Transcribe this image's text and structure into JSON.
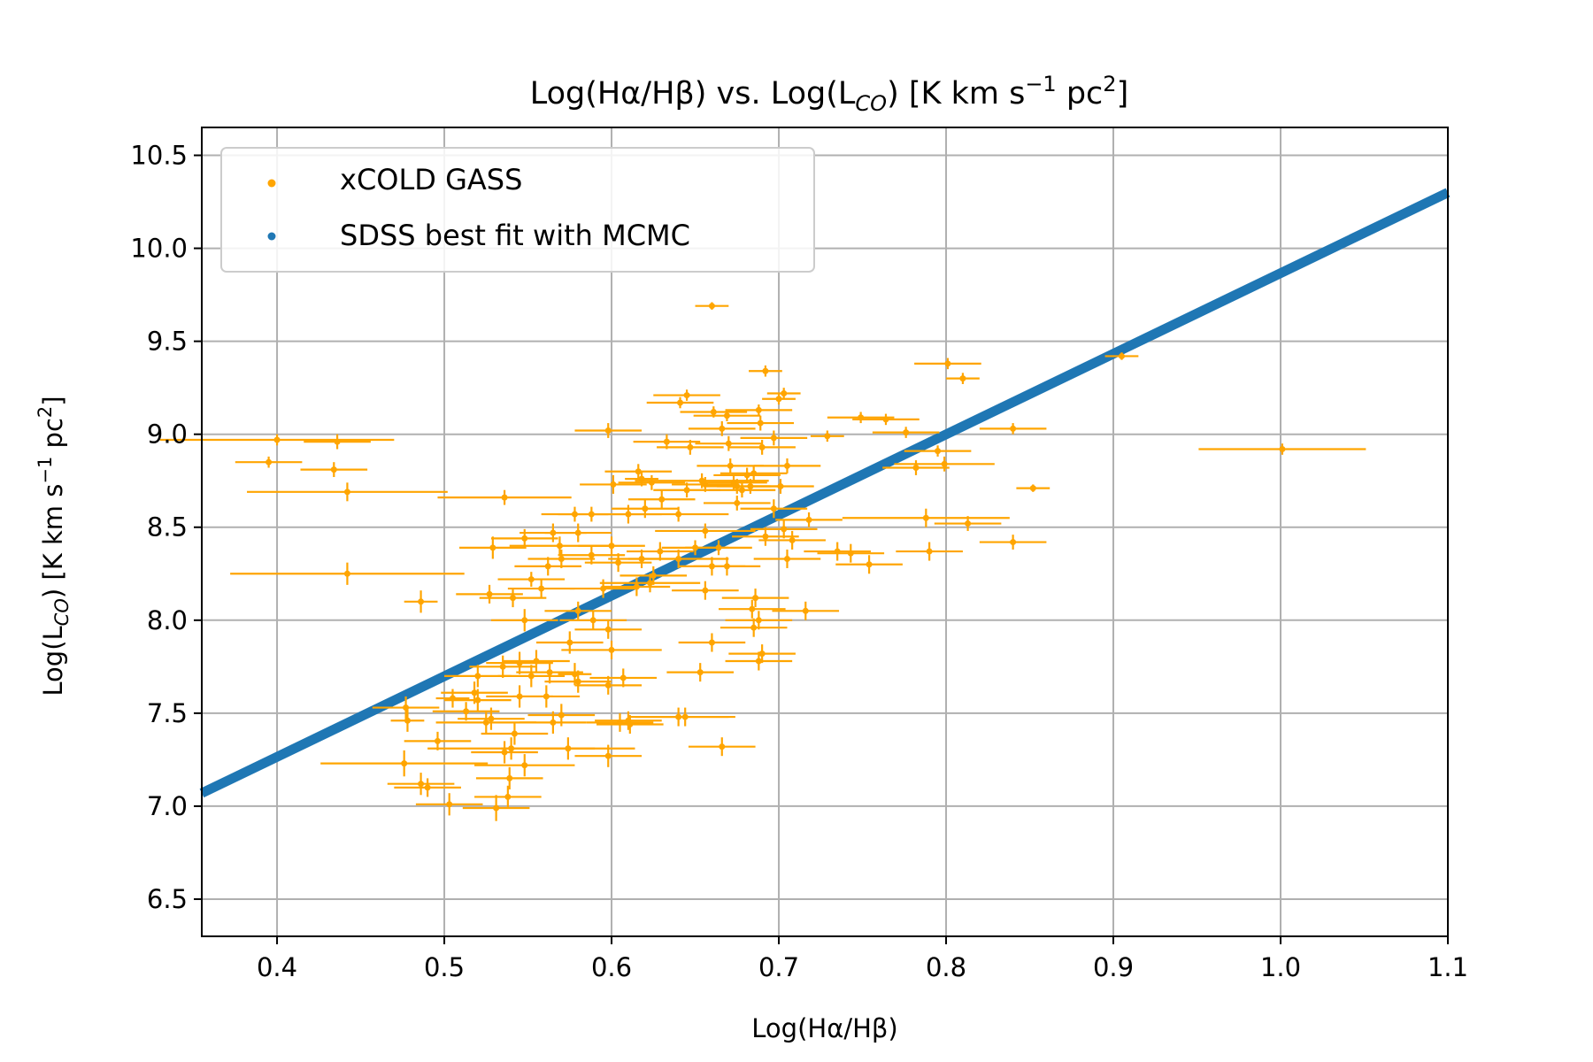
{
  "chart_data": {
    "type": "scatter",
    "title_parts": [
      "Log(Hα/Hβ) vs. Log(L",
      "CO",
      ") [K km s",
      "−1",
      " pc",
      "2",
      "]"
    ],
    "xlabel": "Log(Hα/Hβ)",
    "ylabel_parts": [
      "Log(L",
      "CO",
      ") [K km s",
      "−1",
      " pc",
      "2",
      "]"
    ],
    "xlim": [
      0.355,
      1.1
    ],
    "ylim": [
      6.3,
      10.65
    ],
    "xticks": [
      0.4,
      0.5,
      0.6,
      0.7,
      0.8,
      0.9,
      1.0,
      1.1
    ],
    "xtick_labels": [
      "0.4",
      "0.5",
      "0.6",
      "0.7",
      "0.8",
      "0.9",
      "1.0",
      "1.1"
    ],
    "yticks": [
      6.5,
      7.0,
      7.5,
      8.0,
      8.5,
      9.0,
      9.5,
      10.0,
      10.5
    ],
    "ytick_labels": [
      "6.5",
      "7.0",
      "7.5",
      "8.0",
      "8.5",
      "9.0",
      "9.5",
      "10.0",
      "10.5"
    ],
    "grid": true,
    "legend_position": "top-left",
    "colors": {
      "xcold": "#ffa500",
      "fit": "#1f77b4"
    },
    "series": [
      {
        "name": "xCOLD GASS",
        "kind": "errorbar",
        "points": [
          [
            0.4,
            8.97,
            0.07,
            0.03
          ],
          [
            0.395,
            8.85,
            0.02,
            0.03
          ],
          [
            0.436,
            8.96,
            0.02,
            0.04
          ],
          [
            0.434,
            8.81,
            0.02,
            0.04
          ],
          [
            0.442,
            8.69,
            0.06,
            0.05
          ],
          [
            0.442,
            8.25,
            0.07,
            0.06
          ],
          [
            0.486,
            8.1,
            0.01,
            0.06
          ],
          [
            0.477,
            7.53,
            0.02,
            0.06
          ],
          [
            0.478,
            7.46,
            0.01,
            0.06
          ],
          [
            0.476,
            7.23,
            0.05,
            0.07
          ],
          [
            0.486,
            7.12,
            0.02,
            0.06
          ],
          [
            0.49,
            7.1,
            0.02,
            0.05
          ],
          [
            0.496,
            7.35,
            0.02,
            0.05
          ],
          [
            0.503,
            7.01,
            0.02,
            0.06
          ],
          [
            0.52,
            7.57,
            0.02,
            0.06
          ],
          [
            0.505,
            7.58,
            0.01,
            0.05
          ],
          [
            0.513,
            7.51,
            0.02,
            0.05
          ],
          [
            0.518,
            7.61,
            0.02,
            0.06
          ],
          [
            0.528,
            7.47,
            0.02,
            0.06
          ],
          [
            0.52,
            7.7,
            0.02,
            0.06
          ],
          [
            0.54,
            7.31,
            0.05,
            0.06
          ],
          [
            0.531,
            6.99,
            0.02,
            0.07
          ],
          [
            0.525,
            7.45,
            0.03,
            0.06
          ],
          [
            0.535,
            7.75,
            0.02,
            0.06
          ],
          [
            0.545,
            7.59,
            0.02,
            0.06
          ],
          [
            0.542,
            7.39,
            0.02,
            0.06
          ],
          [
            0.548,
            7.22,
            0.03,
            0.06
          ],
          [
            0.539,
            7.15,
            0.02,
            0.06
          ],
          [
            0.538,
            7.05,
            0.02,
            0.06
          ],
          [
            0.536,
            7.29,
            0.02,
            0.06
          ],
          [
            0.529,
            8.39,
            0.02,
            0.06
          ],
          [
            0.527,
            8.14,
            0.02,
            0.05
          ],
          [
            0.536,
            8.66,
            0.04,
            0.04
          ],
          [
            0.541,
            8.12,
            0.02,
            0.05
          ],
          [
            0.552,
            8.22,
            0.02,
            0.04
          ],
          [
            0.545,
            7.77,
            0.02,
            0.06
          ],
          [
            0.552,
            7.7,
            0.02,
            0.06
          ],
          [
            0.555,
            7.78,
            0.02,
            0.06
          ],
          [
            0.561,
            7.59,
            0.02,
            0.06
          ],
          [
            0.565,
            7.45,
            0.02,
            0.06
          ],
          [
            0.57,
            7.49,
            0.02,
            0.06
          ],
          [
            0.574,
            7.31,
            0.04,
            0.06
          ],
          [
            0.578,
            7.71,
            0.01,
            0.06
          ],
          [
            0.58,
            7.67,
            0.02,
            0.06
          ],
          [
            0.563,
            7.72,
            0.02,
            0.06
          ],
          [
            0.548,
            8.0,
            0.02,
            0.06
          ],
          [
            0.558,
            8.17,
            0.02,
            0.05
          ],
          [
            0.575,
            7.88,
            0.02,
            0.06
          ],
          [
            0.58,
            8.05,
            0.02,
            0.05
          ],
          [
            0.58,
            8.47,
            0.02,
            0.05
          ],
          [
            0.578,
            8.57,
            0.02,
            0.04
          ],
          [
            0.588,
            8.57,
            0.02,
            0.04
          ],
          [
            0.589,
            8.0,
            0.02,
            0.05
          ],
          [
            0.598,
            7.95,
            0.02,
            0.05
          ],
          [
            0.6,
            7.84,
            0.03,
            0.05
          ],
          [
            0.598,
            7.65,
            0.02,
            0.05
          ],
          [
            0.605,
            7.45,
            0.02,
            0.05
          ],
          [
            0.61,
            7.46,
            0.02,
            0.05
          ],
          [
            0.598,
            7.27,
            0.02,
            0.06
          ],
          [
            0.611,
            7.44,
            0.02,
            0.05
          ],
          [
            0.607,
            7.69,
            0.02,
            0.05
          ],
          [
            0.615,
            8.18,
            0.02,
            0.05
          ],
          [
            0.618,
            8.33,
            0.02,
            0.05
          ],
          [
            0.623,
            8.2,
            0.03,
            0.05
          ],
          [
            0.629,
            8.37,
            0.02,
            0.05
          ],
          [
            0.625,
            8.24,
            0.02,
            0.05
          ],
          [
            0.601,
            8.73,
            0.02,
            0.05
          ],
          [
            0.598,
            9.02,
            0.02,
            0.04
          ],
          [
            0.616,
            8.8,
            0.02,
            0.04
          ],
          [
            0.618,
            8.76,
            0.01,
            0.04
          ],
          [
            0.624,
            8.74,
            0.02,
            0.04
          ],
          [
            0.63,
            8.65,
            0.02,
            0.05
          ],
          [
            0.633,
            8.96,
            0.02,
            0.04
          ],
          [
            0.64,
            8.57,
            0.03,
            0.04
          ],
          [
            0.645,
            8.7,
            0.02,
            0.04
          ],
          [
            0.641,
            9.17,
            0.02,
            0.03
          ],
          [
            0.645,
            9.21,
            0.02,
            0.03
          ],
          [
            0.647,
            8.93,
            0.02,
            0.04
          ],
          [
            0.654,
            8.75,
            0.04,
            0.04
          ],
          [
            0.656,
            8.73,
            0.02,
            0.04
          ],
          [
            0.66,
            9.69,
            0.01,
            0.02
          ],
          [
            0.661,
            9.12,
            0.02,
            0.03
          ],
          [
            0.666,
            9.03,
            0.02,
            0.04
          ],
          [
            0.669,
            9.1,
            0.02,
            0.03
          ],
          [
            0.67,
            8.95,
            0.02,
            0.04
          ],
          [
            0.671,
            8.83,
            0.02,
            0.04
          ],
          [
            0.673,
            8.74,
            0.02,
            0.04
          ],
          [
            0.675,
            8.72,
            0.02,
            0.04
          ],
          [
            0.678,
            8.7,
            0.02,
            0.04
          ],
          [
            0.681,
            8.78,
            0.02,
            0.04
          ],
          [
            0.683,
            8.72,
            0.02,
            0.04
          ],
          [
            0.685,
            8.79,
            0.02,
            0.04
          ],
          [
            0.688,
            9.13,
            0.02,
            0.03
          ],
          [
            0.689,
            9.06,
            0.02,
            0.04
          ],
          [
            0.69,
            8.93,
            0.02,
            0.04
          ],
          [
            0.692,
            9.34,
            0.01,
            0.03
          ],
          [
            0.697,
            8.98,
            0.02,
            0.04
          ],
          [
            0.7,
            9.19,
            0.01,
            0.03
          ],
          [
            0.703,
            9.22,
            0.01,
            0.03
          ],
          [
            0.705,
            8.83,
            0.02,
            0.04
          ],
          [
            0.701,
            8.72,
            0.02,
            0.04
          ],
          [
            0.703,
            8.49,
            0.02,
            0.05
          ],
          [
            0.708,
            8.43,
            0.02,
            0.05
          ],
          [
            0.718,
            8.54,
            0.02,
            0.04
          ],
          [
            0.729,
            8.99,
            0.01,
            0.03
          ],
          [
            0.735,
            8.37,
            0.02,
            0.05
          ],
          [
            0.743,
            8.36,
            0.02,
            0.05
          ],
          [
            0.749,
            9.09,
            0.02,
            0.03
          ],
          [
            0.754,
            8.3,
            0.02,
            0.05
          ],
          [
            0.764,
            9.08,
            0.02,
            0.03
          ],
          [
            0.776,
            9.01,
            0.02,
            0.03
          ],
          [
            0.782,
            8.82,
            0.02,
            0.04
          ],
          [
            0.788,
            8.55,
            0.05,
            0.05
          ],
          [
            0.795,
            8.91,
            0.02,
            0.03
          ],
          [
            0.799,
            8.84,
            0.03,
            0.04
          ],
          [
            0.79,
            8.37,
            0.02,
            0.05
          ],
          [
            0.801,
            9.38,
            0.02,
            0.03
          ],
          [
            0.81,
            9.3,
            0.01,
            0.03
          ],
          [
            0.813,
            8.52,
            0.02,
            0.04
          ],
          [
            0.84,
            9.03,
            0.02,
            0.03
          ],
          [
            0.84,
            8.42,
            0.02,
            0.04
          ],
          [
            0.852,
            8.71,
            0.01,
            0.02
          ],
          [
            0.905,
            9.42,
            0.01,
            0.02
          ],
          [
            1.001,
            8.92,
            0.05,
            0.03
          ],
          [
            0.656,
            8.48,
            0.03,
            0.04
          ],
          [
            0.664,
            8.39,
            0.02,
            0.04
          ],
          [
            0.66,
            8.29,
            0.02,
            0.05
          ],
          [
            0.669,
            8.29,
            0.02,
            0.05
          ],
          [
            0.656,
            8.16,
            0.02,
            0.05
          ],
          [
            0.686,
            8.12,
            0.02,
            0.05
          ],
          [
            0.684,
            8.06,
            0.02,
            0.05
          ],
          [
            0.688,
            8.0,
            0.02,
            0.05
          ],
          [
            0.685,
            7.96,
            0.02,
            0.05
          ],
          [
            0.69,
            7.82,
            0.02,
            0.05
          ],
          [
            0.688,
            7.78,
            0.02,
            0.05
          ],
          [
            0.66,
            7.88,
            0.02,
            0.05
          ],
          [
            0.64,
            7.48,
            0.03,
            0.05
          ],
          [
            0.644,
            7.48,
            0.03,
            0.05
          ],
          [
            0.666,
            7.32,
            0.02,
            0.05
          ],
          [
            0.653,
            7.72,
            0.02,
            0.05
          ],
          [
            0.692,
            8.45,
            0.02,
            0.05
          ],
          [
            0.705,
            8.33,
            0.02,
            0.05
          ],
          [
            0.716,
            8.05,
            0.02,
            0.05
          ],
          [
            0.675,
            8.63,
            0.02,
            0.04
          ],
          [
            0.697,
            8.6,
            0.02,
            0.05
          ],
          [
            0.65,
            8.39,
            0.02,
            0.04
          ],
          [
            0.64,
            8.33,
            0.03,
            0.05
          ],
          [
            0.6,
            8.4,
            0.02,
            0.05
          ],
          [
            0.604,
            8.31,
            0.02,
            0.05
          ],
          [
            0.595,
            8.17,
            0.02,
            0.05
          ],
          [
            0.588,
            8.35,
            0.02,
            0.05
          ],
          [
            0.57,
            8.33,
            0.02,
            0.05
          ],
          [
            0.569,
            8.4,
            0.03,
            0.05
          ],
          [
            0.562,
            8.29,
            0.02,
            0.05
          ],
          [
            0.565,
            8.47,
            0.02,
            0.05
          ],
          [
            0.548,
            8.44,
            0.02,
            0.05
          ],
          [
            0.61,
            8.57,
            0.02,
            0.05
          ],
          [
            0.62,
            8.6,
            0.02,
            0.05
          ]
        ]
      },
      {
        "name": "SDSS best fit with MCMC",
        "kind": "line",
        "x": [
          0.355,
          1.1
        ],
        "y": [
          7.07,
          10.3
        ]
      }
    ]
  }
}
